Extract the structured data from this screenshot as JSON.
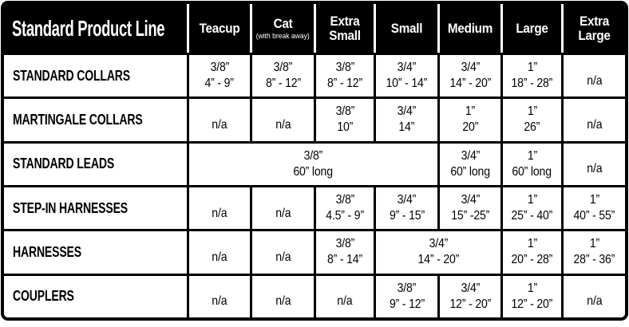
{
  "colors": {
    "table_bg": "#ffffff",
    "header_bg": "#000000",
    "header_text": "#ffffff",
    "body_text": "#000000",
    "grid_line": "#000000"
  },
  "table": {
    "title": "Standard Product Line",
    "columns": [
      {
        "label": "Teacup",
        "sub": ""
      },
      {
        "label": "Cat",
        "sub": "(with break away)"
      },
      {
        "label": "Extra Small",
        "sub": ""
      },
      {
        "label": "Small",
        "sub": ""
      },
      {
        "label": "Medium",
        "sub": ""
      },
      {
        "label": "Large",
        "sub": ""
      },
      {
        "label": "Extra Large",
        "sub": ""
      }
    ],
    "rows": [
      {
        "label": "STANDARD COLLARS",
        "cells": [
          {
            "span": 1,
            "lines": [
              "3/8”",
              "4” - 9”"
            ]
          },
          {
            "span": 1,
            "lines": [
              "3/8”",
              "8” - 12”"
            ]
          },
          {
            "span": 1,
            "lines": [
              "3/8”",
              "8” - 12”"
            ]
          },
          {
            "span": 1,
            "lines": [
              "3/4”",
              "10” - 14”"
            ]
          },
          {
            "span": 1,
            "lines": [
              "3/4”",
              "14” - 20”"
            ]
          },
          {
            "span": 1,
            "lines": [
              "1”",
              "18” - 28”"
            ]
          },
          {
            "span": 1,
            "lines": [
              "n/a"
            ]
          }
        ]
      },
      {
        "label": "MARTINGALE COLLARS",
        "cells": [
          {
            "span": 1,
            "lines": [
              "n/a"
            ]
          },
          {
            "span": 1,
            "lines": [
              "n/a"
            ]
          },
          {
            "span": 1,
            "lines": [
              "3/8”",
              "10”"
            ]
          },
          {
            "span": 1,
            "lines": [
              "3/4”",
              "14”"
            ]
          },
          {
            "span": 1,
            "lines": [
              "1”",
              "20”"
            ]
          },
          {
            "span": 1,
            "lines": [
              "1”",
              "26”"
            ]
          },
          {
            "span": 1,
            "lines": [
              "n/a"
            ]
          }
        ]
      },
      {
        "label": "STANDARD LEADS",
        "cells": [
          {
            "span": 4,
            "lines": [
              "3/8”",
              "60” long"
            ]
          },
          {
            "span": 1,
            "lines": [
              "3/4”",
              "60” long"
            ]
          },
          {
            "span": 1,
            "lines": [
              "1”",
              "60” long"
            ]
          },
          {
            "span": 1,
            "lines": [
              "n/a"
            ]
          }
        ]
      },
      {
        "label": "STEP-IN HARNESSES",
        "cells": [
          {
            "span": 1,
            "lines": [
              "n/a"
            ]
          },
          {
            "span": 1,
            "lines": [
              "n/a"
            ]
          },
          {
            "span": 1,
            "lines": [
              "3/8”",
              "4.5” - 9”"
            ]
          },
          {
            "span": 1,
            "lines": [
              "3/4”",
              "9” - 15”"
            ]
          },
          {
            "span": 1,
            "lines": [
              "3/4”",
              "15” -25”"
            ]
          },
          {
            "span": 1,
            "lines": [
              "1”",
              "25” - 40”"
            ]
          },
          {
            "span": 1,
            "lines": [
              "1”",
              "40” - 55”"
            ]
          }
        ]
      },
      {
        "label": "HARNESSES",
        "cells": [
          {
            "span": 1,
            "lines": [
              "n/a"
            ]
          },
          {
            "span": 1,
            "lines": [
              "n/a"
            ]
          },
          {
            "span": 1,
            "lines": [
              "3/8”",
              "8” - 14”"
            ]
          },
          {
            "span": 2,
            "lines": [
              "3/4”",
              "14” - 20”"
            ]
          },
          {
            "span": 1,
            "lines": [
              "1”",
              "20” - 28”"
            ]
          },
          {
            "span": 1,
            "lines": [
              "1”",
              "28” - 36”"
            ]
          }
        ]
      },
      {
        "label": "COUPLERS",
        "cells": [
          {
            "span": 1,
            "lines": [
              "n/a"
            ]
          },
          {
            "span": 1,
            "lines": [
              "n/a"
            ]
          },
          {
            "span": 1,
            "lines": [
              "n/a"
            ]
          },
          {
            "span": 1,
            "lines": [
              "3/8”",
              "9” - 12”"
            ]
          },
          {
            "span": 1,
            "lines": [
              "3/4”",
              "12” - 20”"
            ]
          },
          {
            "span": 1,
            "lines": [
              "1”",
              "12” - 20”"
            ]
          },
          {
            "span": 1,
            "lines": [
              "n/a"
            ]
          }
        ]
      }
    ]
  }
}
